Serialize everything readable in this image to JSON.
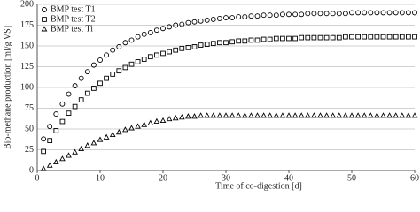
{
  "chart_data": {
    "type": "scatter",
    "xlabel": "Time of co-digestion [d]",
    "ylabel": "Bio-methane production [ml/g VS]",
    "x": [
      1,
      2,
      3,
      4,
      5,
      6,
      7,
      8,
      9,
      10,
      11,
      12,
      13,
      14,
      15,
      16,
      17,
      18,
      19,
      20,
      21,
      22,
      23,
      24,
      25,
      26,
      27,
      28,
      29,
      30,
      31,
      32,
      33,
      34,
      35,
      36,
      37,
      38,
      39,
      40,
      41,
      42,
      43,
      44,
      45,
      46,
      47,
      48,
      49,
      50,
      51,
      52,
      53,
      54,
      55,
      56,
      57,
      58,
      59,
      60
    ],
    "series": [
      {
        "name": "BMP test T1",
        "marker": "circle",
        "color": "#000000",
        "values": [
          38,
          53,
          68,
          80,
          92,
          102,
          111,
          119,
          127,
          133,
          139,
          145,
          149,
          154,
          157,
          161,
          164,
          166,
          169,
          171,
          173,
          175,
          176,
          178,
          179,
          180,
          181,
          182,
          183,
          184,
          184,
          185,
          185,
          186,
          186,
          187,
          187,
          187,
          188,
          188,
          188,
          188,
          189,
          189,
          189,
          189,
          189,
          189,
          189,
          190,
          190,
          190,
          190,
          190,
          190,
          190,
          190,
          190,
          190,
          190
        ]
      },
      {
        "name": "BMP test T2",
        "marker": "square",
        "color": "#000000",
        "values": [
          23,
          36,
          48,
          59,
          69,
          77,
          85,
          93,
          99,
          105,
          111,
          116,
          120,
          124,
          128,
          131,
          134,
          137,
          139,
          141,
          143,
          145,
          147,
          148,
          149,
          151,
          152,
          153,
          154,
          154,
          155,
          156,
          156,
          157,
          157,
          158,
          158,
          159,
          159,
          159,
          159,
          160,
          160,
          160,
          160,
          160,
          160,
          160,
          161,
          161,
          161,
          161,
          161,
          161,
          161,
          161,
          161,
          161,
          161,
          161
        ]
      },
      {
        "name": "BMP test Ti",
        "marker": "triangle",
        "color": "#000000",
        "values": [
          2,
          6,
          10,
          14,
          18,
          22,
          26,
          30,
          33,
          37,
          40,
          43,
          46,
          49,
          51,
          53,
          55,
          57,
          59,
          60,
          62,
          63,
          64,
          65,
          65,
          66,
          66,
          66,
          66,
          66,
          66,
          66,
          66,
          66,
          66,
          66,
          66,
          66,
          66,
          66,
          66,
          66,
          66,
          66,
          66,
          66,
          66,
          66,
          66,
          66,
          66,
          66,
          66,
          66,
          66,
          66,
          66,
          66,
          66,
          66
        ]
      }
    ],
    "xlim": [
      0,
      60
    ],
    "xticks": [
      0,
      10,
      20,
      30,
      40,
      50,
      60
    ],
    "ylim": [
      0,
      200
    ],
    "yticks": [
      0,
      25,
      50,
      75,
      100,
      125,
      150,
      175,
      200
    ],
    "grid": true,
    "legend": "upper left"
  }
}
